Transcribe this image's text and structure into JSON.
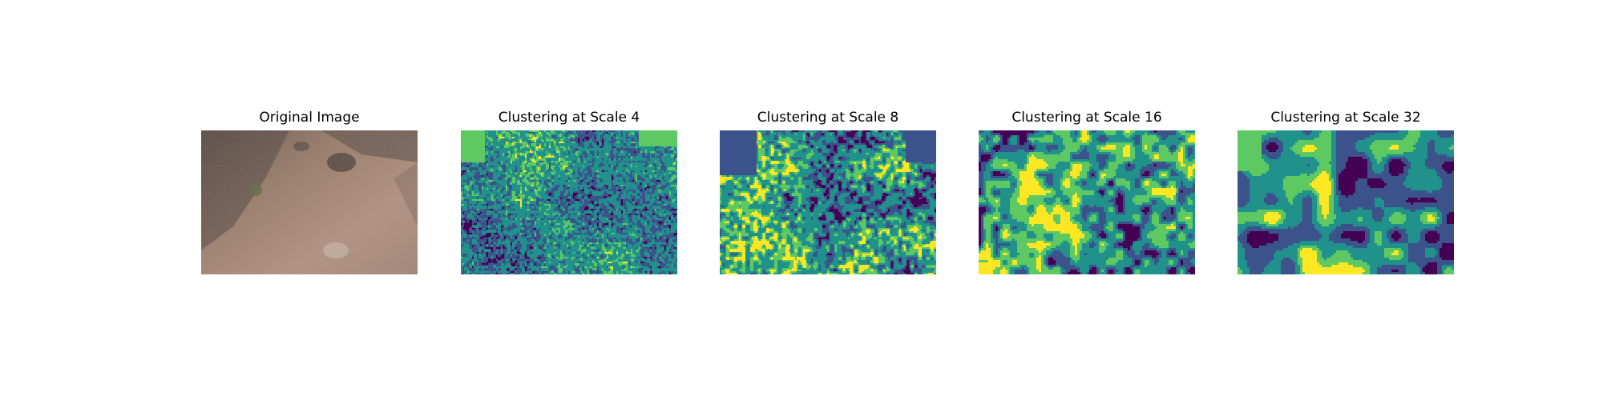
{
  "figure": {
    "panels": [
      {
        "kind": "photo",
        "title": "Original Image"
      },
      {
        "kind": "cluster",
        "title": "Clustering at Scale 4"
      },
      {
        "kind": "cluster",
        "title": "Clustering at Scale 8"
      },
      {
        "kind": "cluster",
        "title": "Clustering at Scale 16"
      },
      {
        "kind": "cluster",
        "title": "Clustering at Scale 32"
      }
    ],
    "colors": {
      "c0": "#440154",
      "c1": "#3b528b",
      "c2": "#21918c",
      "c3": "#5ec962",
      "c4": "#fde725"
    }
  }
}
